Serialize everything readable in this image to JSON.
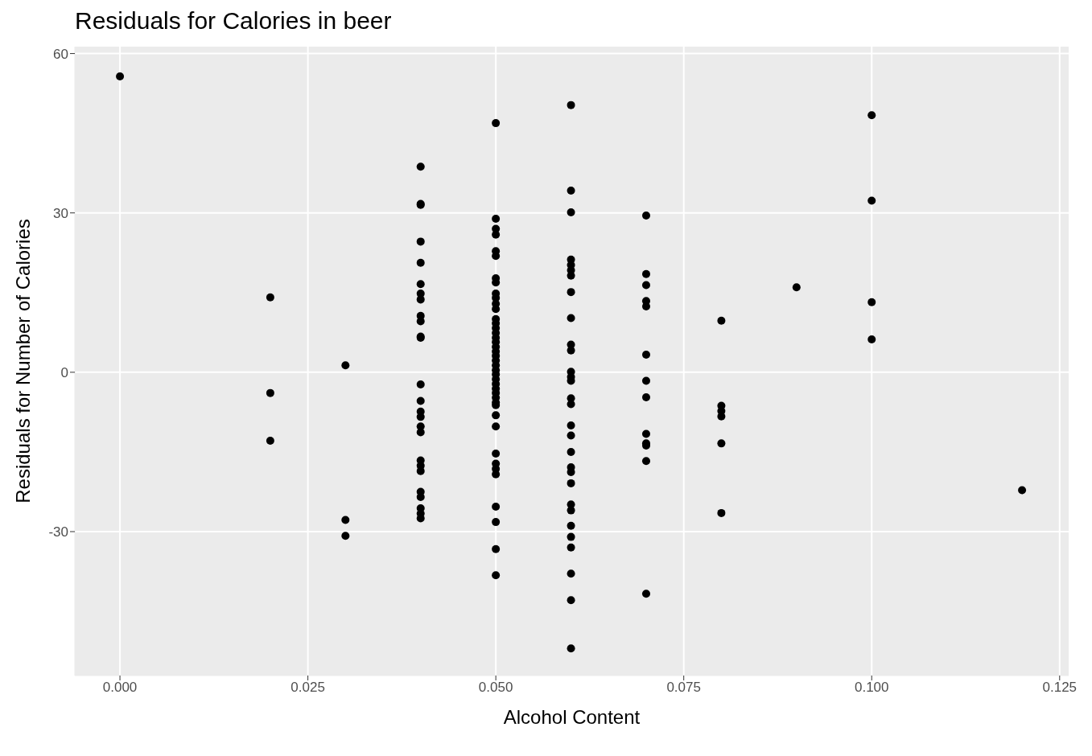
{
  "chart_data": {
    "type": "scatter",
    "title": "Residuals for Calories in beer",
    "xlabel": "Alcohol Content",
    "ylabel": "Residuals for Number of Calories",
    "x": [
      0,
      0.02,
      0.02,
      0.02,
      0.03,
      0.03,
      0.03,
      0.04,
      0.04,
      0.04,
      0.04,
      0.04,
      0.04,
      0.04,
      0.04,
      0.04,
      0.04,
      0.04,
      0.04,
      0.04,
      0.04,
      0.04,
      0.04,
      0.04,
      0.04,
      0.04,
      0.04,
      0.04,
      0.04,
      0.04,
      0.04,
      0.04,
      0.04,
      0.05,
      0.05,
      0.05,
      0.05,
      0.05,
      0.05,
      0.05,
      0.05,
      0.05,
      0.05,
      0.05,
      0.05,
      0.05,
      0.05,
      0.05,
      0.05,
      0.05,
      0.05,
      0.05,
      0.05,
      0.05,
      0.05,
      0.05,
      0.05,
      0.05,
      0.05,
      0.05,
      0.05,
      0.05,
      0.05,
      0.05,
      0.05,
      0.05,
      0.05,
      0.05,
      0.05,
      0.05,
      0.05,
      0.05,
      0.05,
      0.05,
      0.05,
      0.06,
      0.06,
      0.06,
      0.06,
      0.06,
      0.06,
      0.06,
      0.06,
      0.06,
      0.06,
      0.06,
      0.06,
      0.06,
      0.06,
      0.06,
      0.06,
      0.06,
      0.06,
      0.06,
      0.06,
      0.06,
      0.06,
      0.06,
      0.06,
      0.06,
      0.06,
      0.06,
      0.06,
      0.06,
      0.06,
      0.07,
      0.07,
      0.07,
      0.07,
      0.07,
      0.07,
      0.07,
      0.07,
      0.07,
      0.07,
      0.07,
      0.07,
      0.07,
      0.08,
      0.08,
      0.08,
      0.08,
      0.08,
      0.08,
      0.09,
      0.1,
      0.1,
      0.1,
      0.1,
      0.12
    ],
    "values": [
      55.7,
      14.1,
      -3.9,
      -12.9,
      1.3,
      -27.8,
      -30.8,
      38.7,
      31.7,
      31.5,
      24.6,
      20.6,
      16.6,
      14.8,
      13.7,
      10.6,
      9.6,
      6.7,
      6.5,
      -2.3,
      -5.4,
      -7.4,
      -8.4,
      -10.2,
      -11.3,
      -16.6,
      -17.6,
      -18.6,
      -22.5,
      -23.5,
      -25.6,
      -26.6,
      -27.5,
      46.9,
      28.9,
      27.0,
      25.9,
      22.8,
      21.9,
      17.7,
      16.9,
      14.8,
      14.0,
      12.9,
      11.9,
      10.0,
      9.2,
      8.3,
      7.4,
      6.5,
      5.7,
      4.8,
      3.9,
      3.1,
      2.2,
      1.3,
      0.4,
      -0.4,
      -1.3,
      -2.2,
      -3.1,
      -3.9,
      -4.8,
      -5.7,
      -6.2,
      -8.1,
      -10.2,
      -15.3,
      -17.2,
      -18.2,
      -19.2,
      -25.3,
      -28.2,
      -33.3,
      -38.2,
      50.3,
      34.2,
      30.1,
      21.2,
      20.2,
      19.2,
      18.2,
      15.1,
      10.2,
      5.2,
      4.1,
      0.1,
      -0.9,
      -4.9,
      -6.0,
      -10.0,
      -11.9,
      -15.0,
      -17.9,
      -18.8,
      -20.9,
      -24.9,
      -26.0,
      -28.9,
      -31.0,
      -33.0,
      -37.9,
      -42.9,
      -52.0,
      -1.6,
      29.5,
      18.5,
      16.4,
      13.4,
      12.4,
      3.3,
      -1.6,
      -4.7,
      -11.6,
      -13.4,
      -13.8,
      -16.7,
      -41.7,
      9.7,
      -6.3,
      -7.3,
      -8.3,
      -13.4,
      -26.5,
      16.0,
      48.4,
      32.3,
      13.2,
      6.2,
      -22.2
    ],
    "color": "#000000",
    "marker": "circle",
    "xlim": [
      -0.006,
      0.1262
    ],
    "xticks": [
      {
        "value": 0,
        "label": "0.000"
      },
      {
        "value": 0.025,
        "label": "0.025"
      },
      {
        "value": 0.05,
        "label": "0.050"
      },
      {
        "value": 0.075,
        "label": "0.075"
      },
      {
        "value": 0.1,
        "label": "0.100"
      },
      {
        "value": 0.125,
        "label": "0.125"
      }
    ],
    "ylim": [
      -57.1,
      61.3
    ],
    "yticks": [
      -30,
      0,
      30,
      60
    ],
    "grid": true
  }
}
